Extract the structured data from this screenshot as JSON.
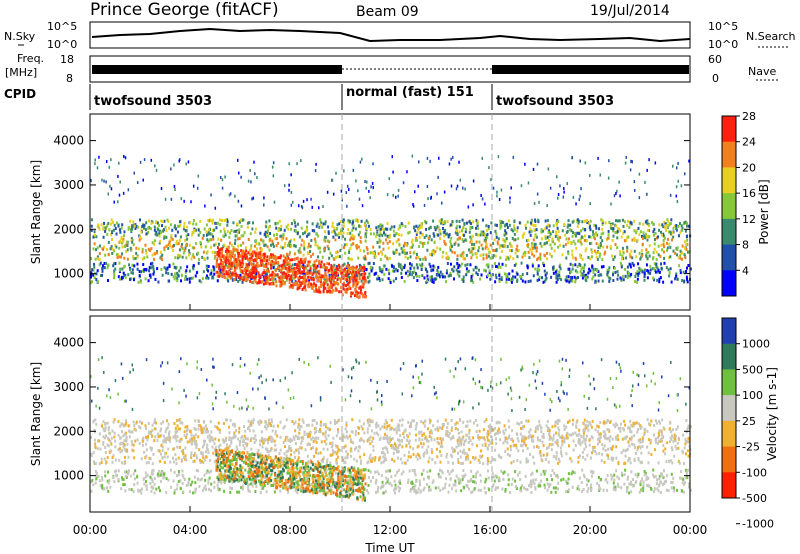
{
  "header": {
    "station": "Prince George (fitACF)",
    "beam": "Beam 09",
    "date": "19/Jul/2014"
  },
  "status_panels": {
    "nsky_label": "N.Sky",
    "nsky_ticks": [
      "10^5",
      "10^0"
    ],
    "nsearch_label": "N.Search",
    "freq_label": "Freq.",
    "freq_unit": "[MHz]",
    "freq_ticks": [
      "18",
      "8"
    ],
    "nave_label": "Nave",
    "nave_ticks": [
      "60",
      "0"
    ],
    "cpid_label": "CPID",
    "cpid_segments": [
      {
        "name": "twofsound 3503",
        "start_hour": 0,
        "end_hour": 10
      },
      {
        "name": "normal (fast) 151",
        "start_hour": 10,
        "end_hour": 16
      },
      {
        "name": "twofsound 3503",
        "start_hour": 16,
        "end_hour": 24
      }
    ]
  },
  "chart_data": [
    {
      "type": "heatmap",
      "title": "Power",
      "ylabel": "Slant Range [km]",
      "xlabel": "Time UT",
      "xlim": [
        0,
        24
      ],
      "ylim": [
        180,
        4600
      ],
      "x_ticks": [
        "00:00",
        "04:00",
        "08:00",
        "12:00",
        "16:00",
        "20:00",
        "00:00"
      ],
      "y_ticks": [
        1000,
        2000,
        3000,
        4000
      ],
      "colorbar": {
        "label": "Power [dB]",
        "ticks": [
          "4",
          "8",
          "12",
          "16",
          "20",
          "24",
          "28"
        ],
        "colors": [
          "#0000ff",
          "#2050a8",
          "#3a8a6e",
          "#86c83a",
          "#e8d020",
          "#f08020",
          "#ff2010"
        ]
      }
    },
    {
      "type": "heatmap",
      "title": "Velocity",
      "ylabel": "Slant Range [km]",
      "xlabel": "Time UT",
      "xlim": [
        0,
        24
      ],
      "ylim": [
        180,
        4600
      ],
      "x_ticks": [
        "00:00",
        "04:00",
        "08:00",
        "12:00",
        "16:00",
        "20:00",
        "00:00"
      ],
      "y_ticks": [
        1000,
        2000,
        3000,
        4000
      ],
      "colorbar": {
        "label": "Velocity [m s-1]",
        "ticks": [
          "1000",
          "500",
          "100",
          "25",
          "-25",
          "-100",
          "-500",
          "-1000"
        ],
        "colors": [
          "#2040b0",
          "#2e7a5a",
          "#70c040",
          "#c8c8c0",
          "#f0b030",
          "#f07010",
          "#ff2000"
        ]
      }
    }
  ],
  "time_label": "Time UT"
}
